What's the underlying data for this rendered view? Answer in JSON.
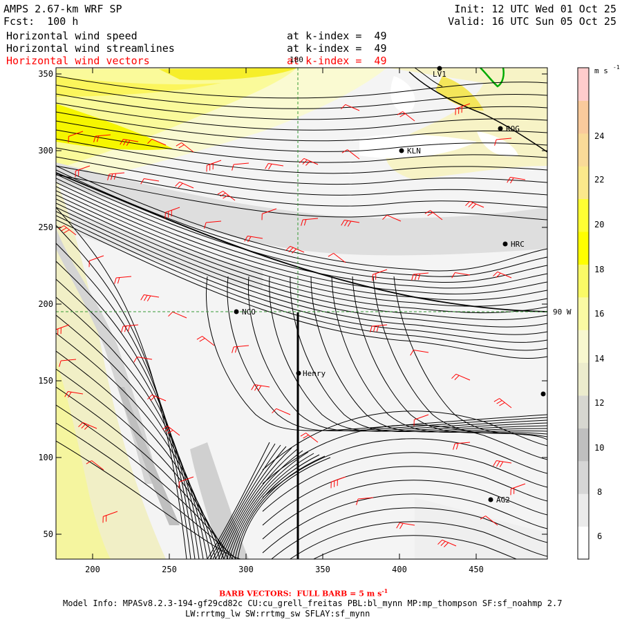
{
  "header": {
    "model": "AMPS 2.67-km WRF SP",
    "forecast": "Fcst:  100 h",
    "init": "Init: 12 UTC Wed 01 Oct 25",
    "valid": "Valid: 16 UTC Sun 05 Oct 25"
  },
  "fields": [
    {
      "name": "Horizontal wind speed",
      "level": "at k-index =  49",
      "color": "#000000"
    },
    {
      "name": "Horizontal wind streamlines",
      "level": "at k-index =  49",
      "color": "#000000"
    },
    {
      "name": "Horizontal wind vectors",
      "level": "at k-index =  49",
      "color": "#ff0000"
    }
  ],
  "map": {
    "x_ticks": [
      "200",
      "250",
      "300",
      "350",
      "400",
      "450"
    ],
    "y_ticks": [
      "350",
      "300",
      "250",
      "200",
      "150",
      "100",
      "50"
    ],
    "longitude_label": "180",
    "latitude_label": "90 W",
    "stations": [
      {
        "id": "LV1"
      },
      {
        "id": "ROG"
      },
      {
        "id": "KLN"
      },
      {
        "id": "HRC"
      },
      {
        "id": "NCO"
      },
      {
        "id": "Henry"
      },
      {
        "id": "AG2"
      },
      {
        "id": ""
      }
    ]
  },
  "colorbar": {
    "unit": "m s",
    "unit_exp": "-1",
    "ticks": [
      "24",
      "22",
      "20",
      "18",
      "16",
      "14",
      "12",
      "10",
      "8",
      "6"
    ],
    "colors": [
      "#ffffff",
      "#ebebeb",
      "#d6d6d6",
      "#bfbfbf",
      "#d7d7d0",
      "#ececcd",
      "#f7f7cf",
      "#fafaa3",
      "#fafa66",
      "#ffff00",
      "#ffff33",
      "#fbe88b",
      "#f9da98",
      "#f9ca9c",
      "#ffcccc"
    ]
  },
  "footer": {
    "barb_note": "BARB VECTORS:  FULL BARB = 5 m s",
    "barb_exp": "-1",
    "model_info_1": "Model Info: MPASv8.2.3-194-gf29cd82c CU:cu_grell_freitas PBL:bl_mynn MP:mp_thompson SF:sf_noahmp 2.7",
    "model_info_2": "LW:rrtmg_lw SW:rrtmg_sw SFLAY:sf_mynn"
  }
}
